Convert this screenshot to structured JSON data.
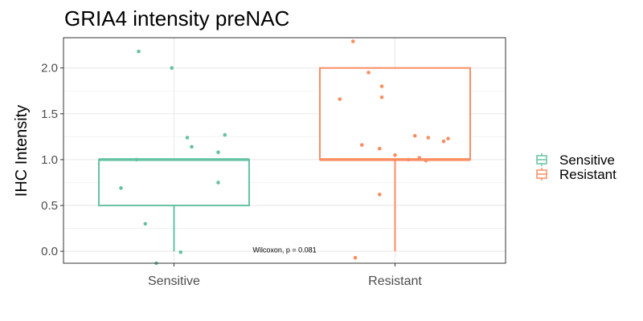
{
  "chart_data": {
    "type": "box",
    "title": "GRIA4 intensity preNAC",
    "xlabel": "",
    "ylabel": "IHC Intensity",
    "categories": [
      "Sensitive",
      "Resistant"
    ],
    "ylim": [
      -0.13,
      2.33
    ],
    "yticks": [
      "0.0",
      "0.5",
      "1.0",
      "1.5",
      "2.0"
    ],
    "ytick_values": [
      0,
      0.5,
      1.0,
      1.5,
      2.0
    ],
    "grid": true,
    "legend_position": "right",
    "colors": {
      "Sensitive": "#66c2a5",
      "Resistant": "#fc8d62",
      "grid": "#ebebeb",
      "frame": "#333333"
    },
    "series": [
      {
        "name": "Sensitive",
        "box": {
          "min": 0.0,
          "q1": 0.5,
          "median": 1.0,
          "q3": 1.0,
          "max": 1.0
        },
        "points": [
          2.18,
          2.0,
          1.27,
          1.24,
          1.14,
          1.08,
          1.0,
          0.75,
          0.69,
          0.3,
          -0.01,
          -0.13
        ],
        "jitter": [
          -0.16,
          -0.01,
          0.23,
          0.06,
          0.08,
          0.2,
          -0.17,
          0.2,
          -0.24,
          -0.13,
          0.03,
          -0.08
        ]
      },
      {
        "name": "Resistant",
        "box": {
          "min": 0.0,
          "q1": 1.0,
          "median": 1.0,
          "q3": 2.0,
          "max": 2.0
        },
        "points": [
          2.29,
          1.95,
          1.8,
          1.68,
          1.66,
          1.26,
          1.24,
          1.23,
          1.2,
          1.16,
          1.12,
          1.05,
          1.02,
          1.0,
          0.99,
          0.62,
          -0.07
        ],
        "jitter": [
          -0.19,
          -0.12,
          -0.06,
          -0.06,
          -0.25,
          0.09,
          0.15,
          0.24,
          0.22,
          -0.15,
          -0.07,
          0.0,
          0.11,
          0.06,
          0.14,
          -0.07,
          -0.18
        ]
      }
    ],
    "annotation": {
      "text": "Wilcoxon, p = 0.081",
      "x_pos": 1.5,
      "y": -0.01
    }
  }
}
